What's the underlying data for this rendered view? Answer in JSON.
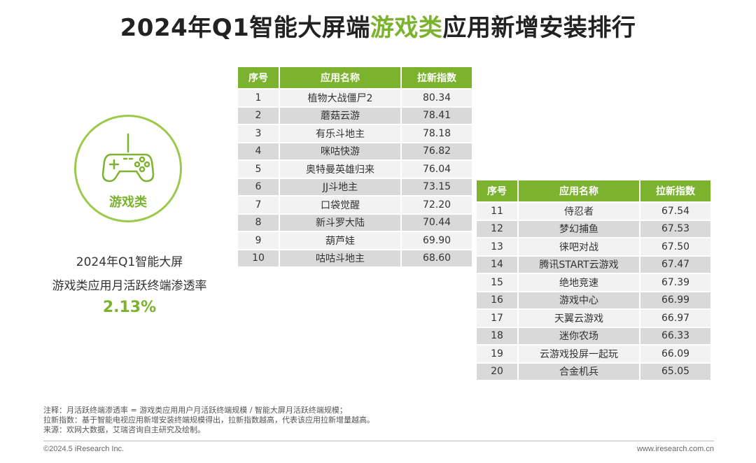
{
  "title": {
    "prefix": "2024年Q1智能大屏端",
    "highlight": "游戏类",
    "suffix": "应用新增安装排行"
  },
  "badge": {
    "icon": "gamepad-icon",
    "label": "游戏类"
  },
  "stat": {
    "line1": "2024年Q1智能大屏",
    "line2": "游戏类应用月活跃终端渗透率",
    "value": "2.13%"
  },
  "table_headers": {
    "rank": "序号",
    "name": "应用名称",
    "index": "拉新指数"
  },
  "table1": [
    {
      "rank": "1",
      "name": "植物大战僵尸2",
      "index": "80.34"
    },
    {
      "rank": "2",
      "name": "蘑菇云游",
      "index": "78.41"
    },
    {
      "rank": "3",
      "name": "有乐斗地主",
      "index": "78.18"
    },
    {
      "rank": "4",
      "name": "咪咕快游",
      "index": "76.82"
    },
    {
      "rank": "5",
      "name": "奥特曼英雄归来",
      "index": "76.04"
    },
    {
      "rank": "6",
      "name": "JJ斗地主",
      "index": "73.15"
    },
    {
      "rank": "7",
      "name": "口袋觉醒",
      "index": "72.20"
    },
    {
      "rank": "8",
      "name": "新斗罗大陆",
      "index": "70.44"
    },
    {
      "rank": "9",
      "name": "葫芦娃",
      "index": "69.90"
    },
    {
      "rank": "10",
      "name": "咕咕斗地主",
      "index": "68.60"
    }
  ],
  "table2": [
    {
      "rank": "11",
      "name": "侍忍者",
      "index": "67.54"
    },
    {
      "rank": "12",
      "name": "梦幻捕鱼",
      "index": "67.53"
    },
    {
      "rank": "13",
      "name": "徕吧对战",
      "index": "67.50"
    },
    {
      "rank": "14",
      "name": "腾讯START云游戏",
      "index": "67.47"
    },
    {
      "rank": "15",
      "name": "绝地竞速",
      "index": "67.39"
    },
    {
      "rank": "16",
      "name": "游戏中心",
      "index": "66.99"
    },
    {
      "rank": "17",
      "name": "天翼云游戏",
      "index": "66.97"
    },
    {
      "rank": "18",
      "name": "迷你农场",
      "index": "66.33"
    },
    {
      "rank": "19",
      "name": "云游戏投屏一起玩",
      "index": "66.09"
    },
    {
      "rank": "20",
      "name": "合金机兵",
      "index": "65.05"
    }
  ],
  "notes": [
    "注释：月活跃终端渗透率 = 游戏类应用用户月活跃终端规模 / 智能大屏月活跃终端规模；",
    "拉新指数：基于智能电视应用新增安装终端规模得出，拉新指数越高，代表该应用拉新增量越高。",
    "来源：欢网大数据，艾瑞咨询自主研究及绘制。"
  ],
  "footer": {
    "copyright": "©2024.5 iResearch Inc.",
    "website": "www.iresearch.com.cn"
  },
  "colors": {
    "accent": "#7cb32e",
    "row_light": "#f2f2f2",
    "row_dark": "#d9d9d9"
  }
}
